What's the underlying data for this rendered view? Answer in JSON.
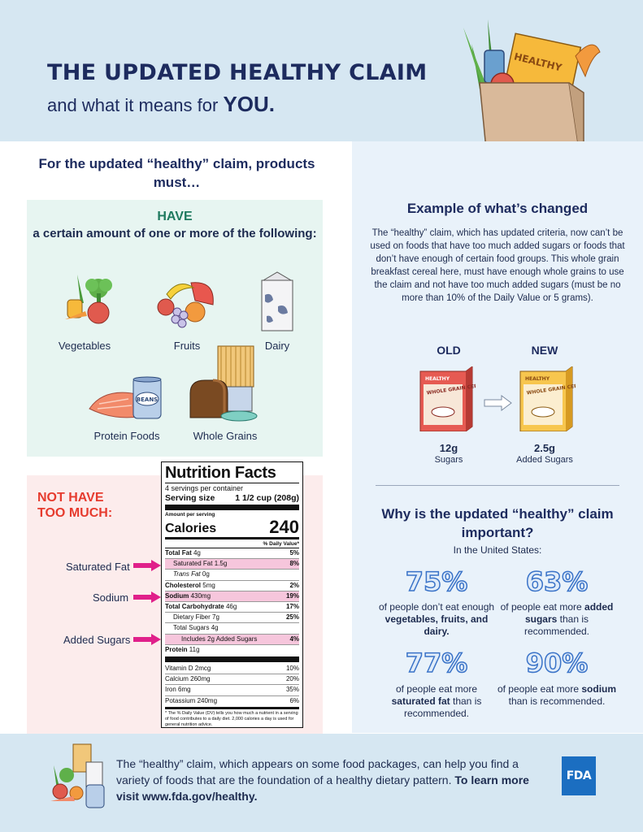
{
  "header": {
    "title": "THE UPDATED HEALTHY CLAIM",
    "subtitle": "and what it means for",
    "subtitle_emphasis": "YOU.",
    "bag_label": "HEALTHY"
  },
  "left": {
    "intro": "For the updated “healthy” claim, products must…",
    "have": {
      "title": "HAVE",
      "subtitle": "a certain amount of one or more of the following:",
      "items": [
        "Vegetables",
        "Fruits",
        "Dairy",
        "Protein Foods",
        "Whole Grains"
      ],
      "can_label": "BEANS"
    },
    "not_have": {
      "title_line1": "NOT HAVE",
      "title_line2": "TOO MUCH:",
      "pointers": [
        "Saturated Fat",
        "Sodium",
        "Added Sugars"
      ]
    }
  },
  "nutrition_facts": {
    "title": "Nutrition Facts",
    "servings": "4 servings per container",
    "serving_size_label": "Serving size",
    "serving_size": "1 1/2 cup (208g)",
    "amount_per_serving": "Amount per serving",
    "calories_label": "Calories",
    "calories": "240",
    "dv_header": "% Daily Value*",
    "rows": [
      {
        "label": "Total Fat",
        "amount": "4g",
        "dv": "5%"
      },
      {
        "label": "Saturated Fat",
        "amount": "1.5g",
        "dv": "8%"
      },
      {
        "label": "Trans Fat",
        "amount": "0g",
        "dv": ""
      },
      {
        "label": "Cholesterol",
        "amount": "5mg",
        "dv": "2%"
      },
      {
        "label": "Sodium",
        "amount": "430mg",
        "dv": "19%"
      },
      {
        "label": "Total Carbohydrate",
        "amount": "46g",
        "dv": "17%"
      },
      {
        "label": "Dietary Fiber",
        "amount": "7g",
        "dv": "25%"
      },
      {
        "label": "Total Sugars",
        "amount": "4g",
        "dv": ""
      },
      {
        "label": "Includes 2g Added Sugars",
        "amount": "",
        "dv": "4%"
      },
      {
        "label": "Protein",
        "amount": "11g",
        "dv": ""
      }
    ],
    "vitamins": [
      {
        "label": "Vitamin D 2mcg",
        "dv": "10%"
      },
      {
        "label": "Calcium 260mg",
        "dv": "20%"
      },
      {
        "label": "Iron 6mg",
        "dv": "35%"
      },
      {
        "label": "Potassium 240mg",
        "dv": "6%"
      }
    ],
    "footnote": "* The % Daily Value (DV) tells you how much a nutrient in a serving of food contributes to a daily diet. 2,000 calories a day is used for general nutrition advice."
  },
  "example": {
    "title": "Example of what’s changed",
    "body": "The “healthy” claim, which has updated criteria, now can’t be used on foods that have too much added sugars or foods that don’t have enough of certain food groups. This whole grain breakfast cereal here, must have enough whole grains to use the claim and not have too much added sugars (must be no more than 10% of the Daily Value or 5 grams).",
    "old_label": "OLD",
    "new_label": "NEW",
    "box_healthy": "HEALTHY",
    "box_cereal": "WHOLE GRAIN CEREAL",
    "old_value": "12g",
    "old_sub": "Sugars",
    "new_value": "2.5g",
    "new_sub": "Added Sugars"
  },
  "why": {
    "title": "Why is the updated “healthy” claim important?",
    "intro": "In the United States:",
    "stats": [
      {
        "value": "75%",
        "pre": "of people don’t eat enough",
        "bold": "vegetables, fruits, and dairy.",
        "post": ""
      },
      {
        "value": "63%",
        "pre": "of people eat more",
        "bold": "added sugars",
        "post": "than is recommended."
      },
      {
        "value": "77%",
        "pre": "of people eat more",
        "bold": "saturated fat",
        "post": "than is recommended."
      },
      {
        "value": "90%",
        "pre": "of people eat more",
        "bold": "sodium",
        "post": "than is recommended."
      }
    ]
  },
  "footer": {
    "text": "The “healthy” claim, which appears on some food packages, can help you find a variety of foods that are the foundation of a healthy dietary pattern.",
    "link_text": "To learn more visit www.fda.gov/healthy.",
    "logo": "FDA"
  },
  "colors": {
    "navy": "#1d2b5e",
    "green": "#1f7a5f",
    "red": "#e63b2e",
    "pink": "#e0208a",
    "stat_blue": "#3a73c8"
  }
}
